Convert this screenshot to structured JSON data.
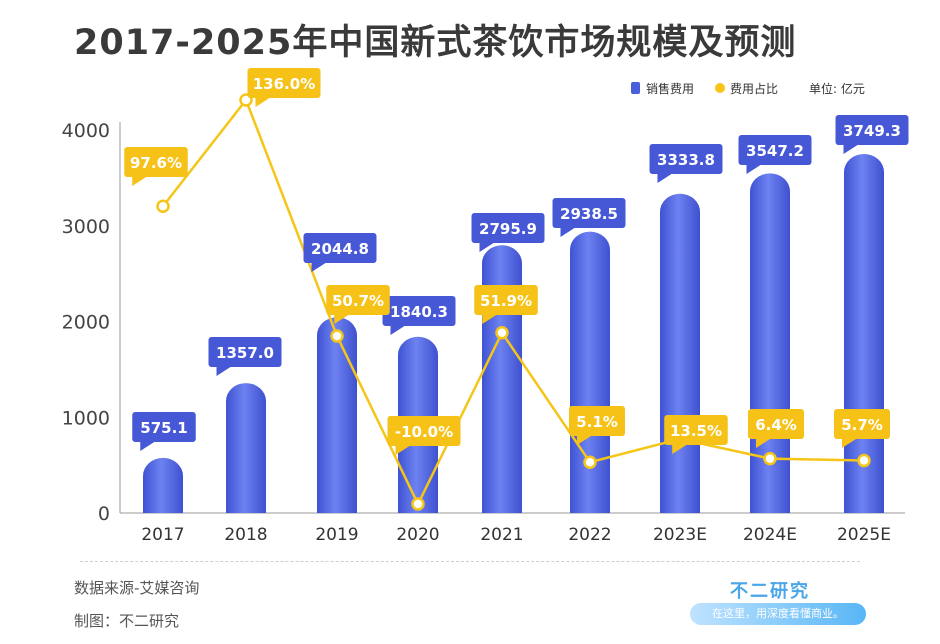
{
  "title": "2017-2025年中国新式茶饮市场规模及预测",
  "footer": {
    "source": "数据来源-艾媒咨询",
    "maker": "制图：不二研究",
    "brand_name": "不二研究",
    "brand_slogan": "在这里，用深度看懂商业。"
  },
  "chart_data": {
    "type": "bar",
    "categories": [
      "2017",
      "2018",
      "2019",
      "2020",
      "2021",
      "2022",
      "2023E",
      "2024E",
      "2025E"
    ],
    "series": [
      {
        "name": "销售费用",
        "type": "bar",
        "axis": "left",
        "values": [
          575.1,
          1357.0,
          2044.8,
          1840.3,
          2795.9,
          2938.5,
          3333.8,
          3547.2,
          3749.3
        ],
        "labels": [
          "575.1",
          "1357.0",
          "2044.8",
          "1840.3",
          "2795.9",
          "2938.5",
          "3333.8",
          "3547.2",
          "3749.3"
        ]
      },
      {
        "name": "费用占比",
        "type": "line",
        "axis": "right",
        "values": [
          97.6,
          136.0,
          50.7,
          -10.0,
          51.9,
          5.1,
          13.5,
          6.4,
          5.7
        ],
        "labels": [
          "97.6%",
          "136.0%",
          "50.7%",
          "-10.0%",
          "51.9%",
          "5.1%",
          "13.5%",
          "6.4%",
          "5.7%"
        ]
      }
    ],
    "unit_label": "单位: 亿元",
    "ylim": [
      0,
      4000
    ],
    "yticks": [
      "0",
      "1000",
      "2000",
      "3000",
      "4000"
    ],
    "colors": {
      "bar": "#4a5ddb",
      "bar_light": "#6f84f2",
      "bar_label": "#4758d6",
      "line": "#f5c518",
      "line_label": "#f6c218"
    },
    "legend_position": "top-right"
  }
}
